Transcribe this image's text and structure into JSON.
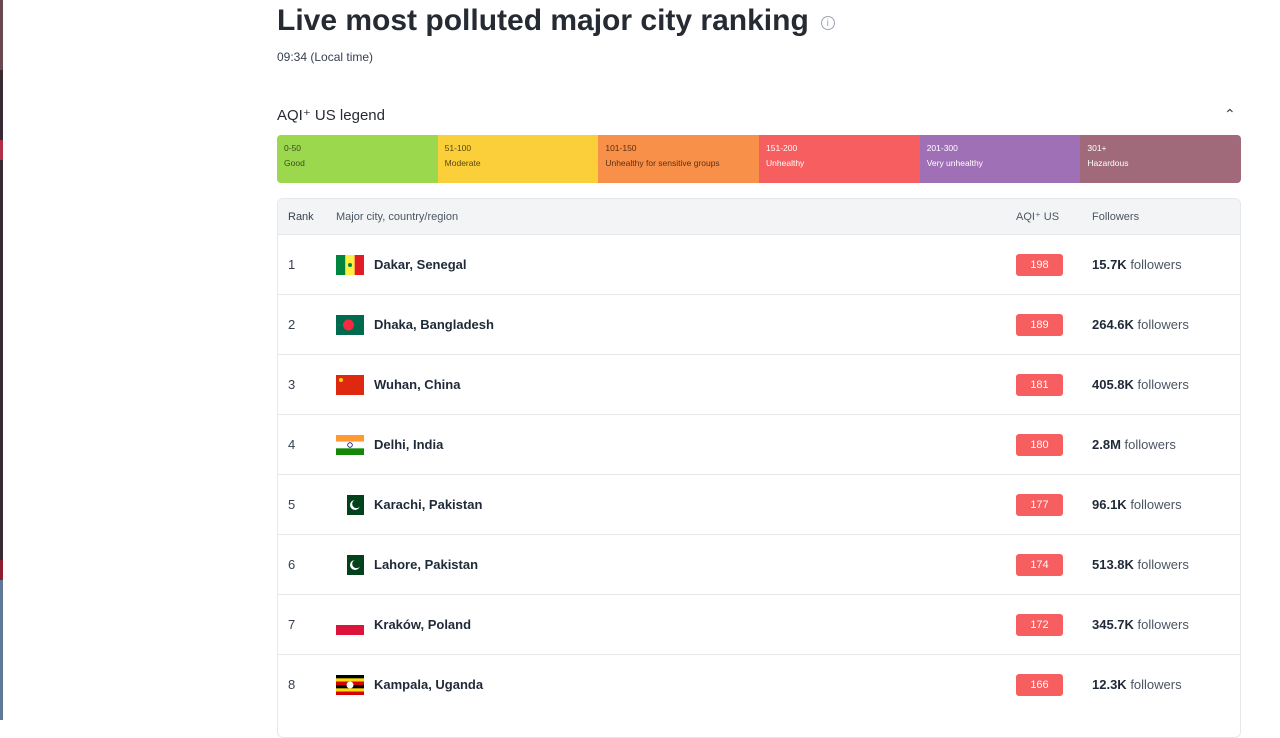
{
  "title": "Live most polluted major city ranking",
  "time": "09:34 (Local time)",
  "legend": {
    "title": "AQI⁺ US legend",
    "segments": [
      {
        "range": "0-50",
        "label": "Good",
        "color": "#9cd84e",
        "text": "#3a4a1e"
      },
      {
        "range": "51-100",
        "label": "Moderate",
        "color": "#facf39",
        "text": "#5a4a10"
      },
      {
        "range": "101-150",
        "label": "Unhealthy for sensitive groups",
        "color": "#f99049",
        "text": "#5a3010"
      },
      {
        "range": "151-200",
        "label": "Unhealthy",
        "color": "#f65e5f",
        "text": "#ffffff"
      },
      {
        "range": "201-300",
        "label": "Very unhealthy",
        "color": "#a070b6",
        "text": "#ffffff"
      },
      {
        "range": "301+",
        "label": "Hazardous",
        "color": "#a06a7b",
        "text": "#ffffff"
      }
    ]
  },
  "table": {
    "headers": {
      "rank": "Rank",
      "city": "Major city, country/region",
      "aqi": "AQI⁺ US",
      "followers": "Followers"
    },
    "rows": [
      {
        "rank": "1",
        "city": "Dakar, Senegal",
        "flag": "senegal",
        "aqi": "198",
        "count": "15.7K",
        "unit": " followers"
      },
      {
        "rank": "2",
        "city": "Dhaka, Bangladesh",
        "flag": "bangladesh",
        "aqi": "189",
        "count": "264.6K",
        "unit": " followers"
      },
      {
        "rank": "3",
        "city": "Wuhan, China",
        "flag": "china",
        "aqi": "181",
        "count": "405.8K",
        "unit": " followers"
      },
      {
        "rank": "4",
        "city": "Delhi, India",
        "flag": "india",
        "aqi": "180",
        "count": "2.8M",
        "unit": " followers"
      },
      {
        "rank": "5",
        "city": "Karachi, Pakistan",
        "flag": "pakistan",
        "aqi": "177",
        "count": "96.1K",
        "unit": " followers"
      },
      {
        "rank": "6",
        "city": "Lahore, Pakistan",
        "flag": "pakistan",
        "aqi": "174",
        "count": "513.8K",
        "unit": " followers"
      },
      {
        "rank": "7",
        "city": "Kraków, Poland",
        "flag": "poland",
        "aqi": "172",
        "count": "345.7K",
        "unit": " followers"
      },
      {
        "rank": "8",
        "city": "Kampala, Uganda",
        "flag": "uganda",
        "aqi": "166",
        "count": "12.3K",
        "unit": " followers"
      }
    ]
  }
}
